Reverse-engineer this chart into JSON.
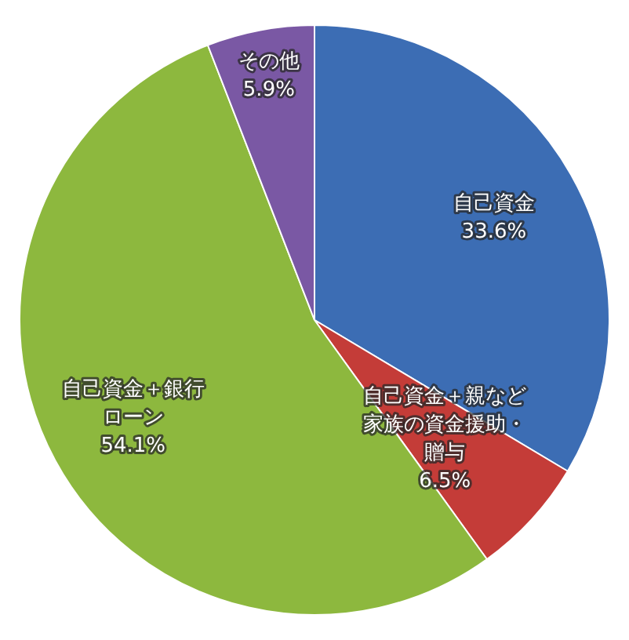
{
  "chart_data": {
    "type": "pie",
    "categories": [
      "自己資金",
      "自己資金＋親など家族の資金援助・贈与",
      "自己資金＋銀行ローン",
      "その他"
    ],
    "values": [
      33.6,
      6.5,
      54.1,
      5.9
    ],
    "value_labels": [
      "33.6%",
      "6.5%",
      "54.1%",
      "5.9%"
    ],
    "colors": [
      "#3c6db4",
      "#c43c38",
      "#8db83e",
      "#7a58a4"
    ],
    "legend": false
  }
}
